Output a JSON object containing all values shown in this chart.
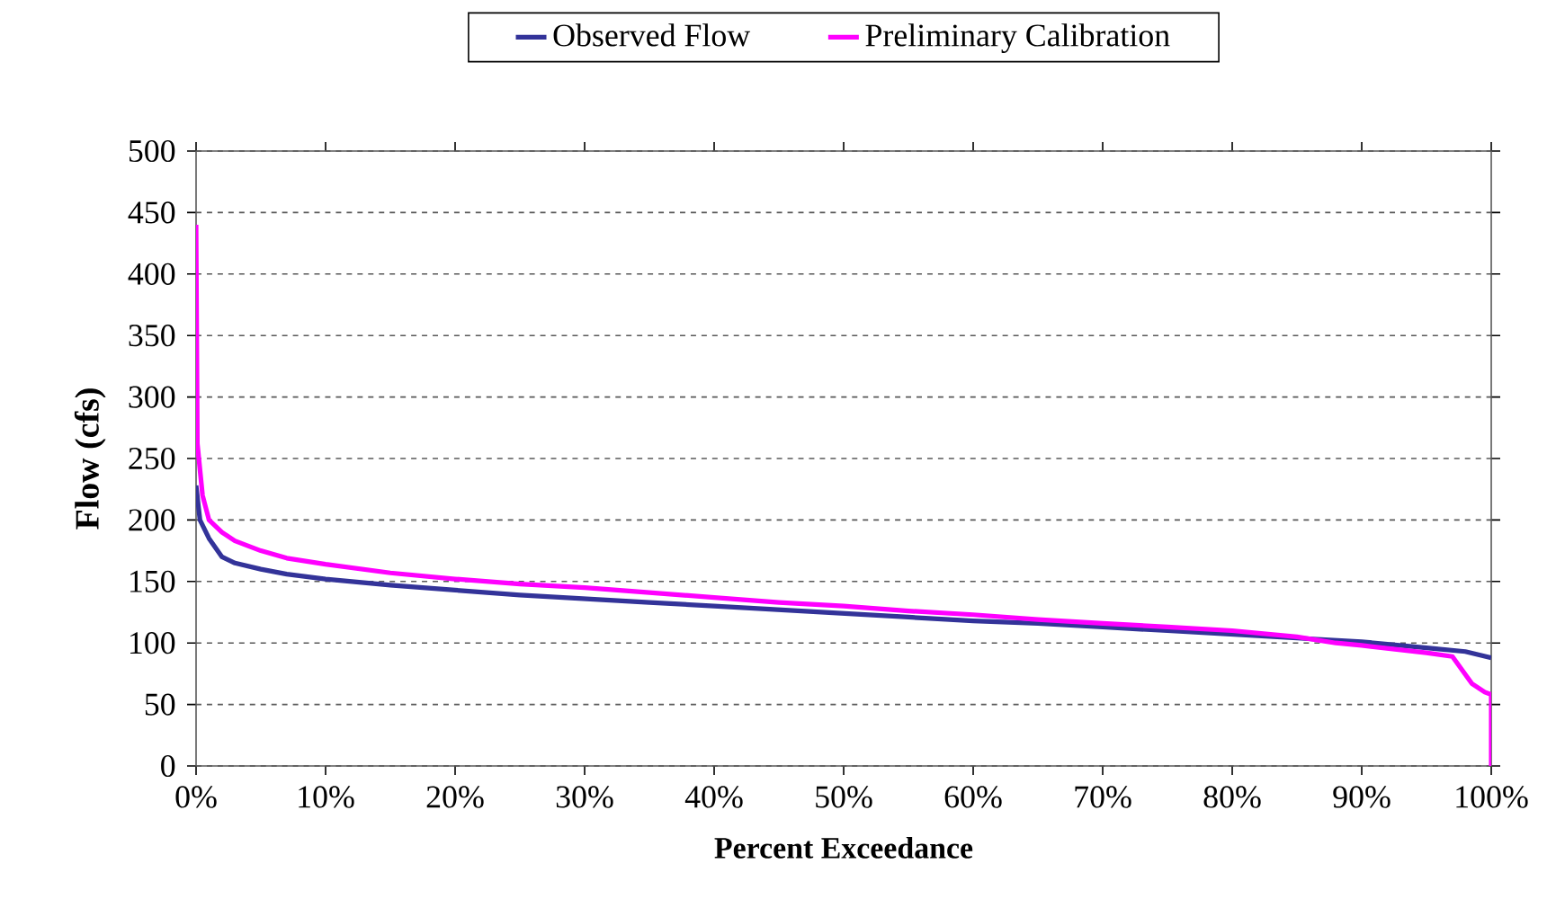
{
  "chart_data": {
    "type": "line",
    "xlabel": "Percent Exceedance",
    "ylabel": "Flow (cfs)",
    "xlim": [
      0,
      100
    ],
    "ylim": [
      0,
      500
    ],
    "xticks": [
      {
        "value": 0,
        "label": "0%"
      },
      {
        "value": 10,
        "label": "10%"
      },
      {
        "value": 20,
        "label": "20%"
      },
      {
        "value": 30,
        "label": "30%"
      },
      {
        "value": 40,
        "label": "40%"
      },
      {
        "value": 50,
        "label": "50%"
      },
      {
        "value": 60,
        "label": "60%"
      },
      {
        "value": 70,
        "label": "70%"
      },
      {
        "value": 80,
        "label": "80%"
      },
      {
        "value": 90,
        "label": "90%"
      },
      {
        "value": 100,
        "label": "100%"
      }
    ],
    "yticks": [
      0,
      50,
      100,
      150,
      200,
      250,
      300,
      350,
      400,
      450,
      500
    ],
    "grid": "y",
    "legend": "top",
    "marker": "none",
    "line_style": "solid",
    "series": [
      {
        "name": "Observed Flow",
        "color": "#333399",
        "x": [
          0,
          0.3,
          1,
          2,
          3,
          5,
          7,
          10,
          15,
          20,
          25,
          30,
          35,
          40,
          45,
          50,
          55,
          60,
          65,
          70,
          75,
          80,
          85,
          90,
          95,
          98,
          100
        ],
        "values": [
          228,
          200,
          185,
          170,
          165,
          160,
          156,
          152,
          147,
          143,
          139,
          136,
          133,
          130,
          127,
          124,
          121,
          118,
          116,
          113,
          110,
          107,
          104,
          101,
          96,
          93,
          88
        ]
      },
      {
        "name": "Preliminary Calibration",
        "color": "#ff00ff",
        "x": [
          0,
          0.1,
          0.5,
          1,
          2,
          3,
          5,
          7,
          10,
          15,
          20,
          25,
          30,
          35,
          40,
          45,
          50,
          55,
          60,
          65,
          70,
          75,
          80,
          85,
          88,
          90,
          95,
          97,
          98.5,
          99.5,
          100,
          100
        ],
        "values": [
          440,
          262,
          220,
          200,
          190,
          183,
          175,
          169,
          164,
          157,
          152,
          148,
          145,
          141,
          137,
          133,
          130,
          126,
          123,
          119,
          116,
          113,
          110,
          105,
          100,
          98,
          92,
          89,
          67,
          60,
          58,
          0
        ]
      }
    ]
  }
}
